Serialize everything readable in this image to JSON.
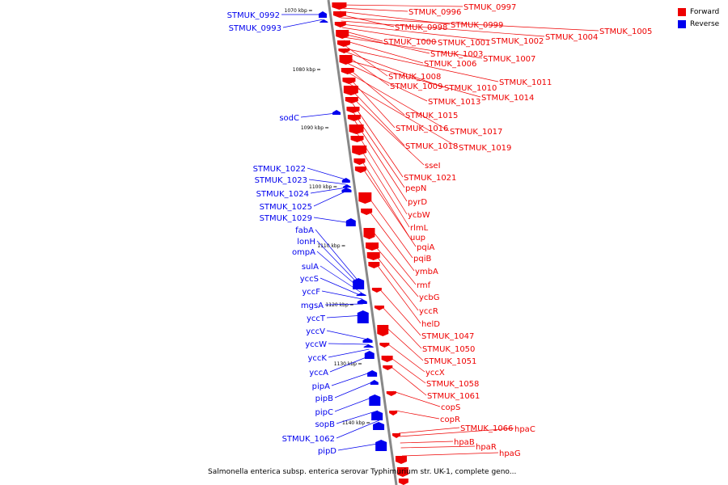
{
  "legend": {
    "forward_label": "Forward",
    "reverse_label": "Reverse"
  },
  "colors": {
    "forward": "#ee0000",
    "reverse": "#0000ee",
    "backbone": "#888888"
  },
  "caption": "Salmonella enterica subsp. enterica serovar Typhimurium str. UK-1, complete geno...",
  "scale_unit": "kbp",
  "ticks": [
    1070,
    1080,
    1090,
    1100,
    1110,
    1120,
    1130,
    1140
  ],
  "reverse_genes": [
    "STMUK_0992",
    "STMUK_0993",
    "sodC",
    "STMUK_1022",
    "STMUK_1023",
    "STMUK_1024",
    "STMUK_1025",
    "STMUK_1029",
    "fabA",
    "lonH",
    "ompA",
    "sulA",
    "yccS",
    "yccF",
    "mgsA",
    "yccT",
    "yccV",
    "yccW",
    "yccK",
    "yccA",
    "pipA",
    "pipB",
    "pipC",
    "sopB",
    "STMUK_1062",
    "pipD"
  ],
  "forward_genes": [
    "STMUK_0997",
    "STMUK_0996",
    "STMUK_0999",
    "STMUK_0998",
    "STMUK_1005",
    "STMUK_1004",
    "STMUK_1002",
    "STMUK_1001",
    "STMUK_1000",
    "STMUK_1003",
    "STMUK_1007",
    "STMUK_1006",
    "STMUK_1008",
    "STMUK_1011",
    "STMUK_1010",
    "STMUK_1009",
    "STMUK_1014",
    "STMUK_1013",
    "STMUK_1015",
    "STMUK_1017",
    "STMUK_1016",
    "STMUK_1019",
    "STMUK_1018",
    "sseI",
    "STMUK_1021",
    "pepN",
    "pyrD",
    "ycbW",
    "rlmL",
    "uup",
    "pqiA",
    "pqiB",
    "ymbA",
    "rmf",
    "ycbG",
    "yccR",
    "helD",
    "STMUK_1047",
    "STMUK_1050",
    "STMUK_1051",
    "yccX",
    "STMUK_1058",
    "STMUK_1061",
    "copS",
    "copR",
    "STMUK_1066",
    "hpaC",
    "hpaB",
    "hpaR",
    "hpaG"
  ]
}
